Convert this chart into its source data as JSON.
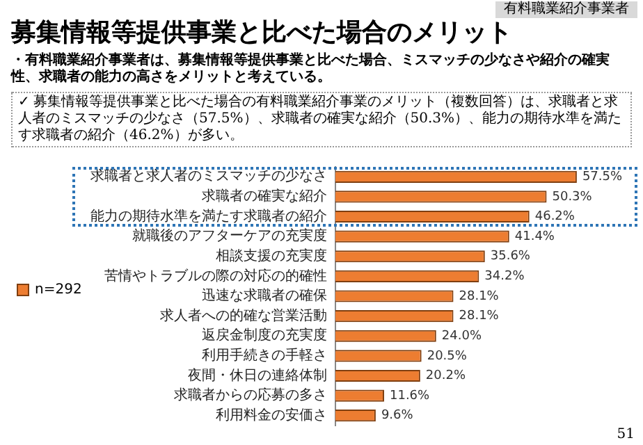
{
  "chart_data": {
    "type": "bar",
    "orientation": "horizontal",
    "title": "募集情報等提供事業と比べた場合のメリット",
    "subtitle": "・有料職業紹介事業者は、募集情報等提供事業と比べた場合、ミスマッチの少なさや紹介の確実性、求職者の能力の高さをメリットと考えている。",
    "annotations": [
      "有料職業紹介事業者",
      "✓ 募集情報等提供事業と比べた場合の有料職業紹介事業のメリット（複数回答）は、求職者と求人者のミスマッチの少なさ（57.5%）、求職者の確実な紹介（50.3%）、能力の期待水準を満たす求職者の紹介（46.2%）が多い。",
      "51"
    ],
    "categories": [
      "求職者と求人者のミスマッチの少なさ",
      "求職者の確実な紹介",
      "能力の期待水準を満たす求職者の紹介",
      "就職後のアフターケアの充実度",
      "相談支援の充実度",
      "苦情やトラブルの際の対応の的確性",
      "迅速な求職者の確保",
      "求人者への的確な営業活動",
      "返戻金制度の充実度",
      "利用手続きの手軽さ",
      "夜間・休日の連絡体制",
      "求職者からの応募の多さ",
      "利用料金の安価さ"
    ],
    "series": [
      {
        "name": "n=292",
        "color": "#ed7d31",
        "values": [
          57.5,
          50.3,
          46.2,
          41.4,
          35.6,
          34.2,
          28.1,
          28.1,
          24.0,
          20.5,
          20.2,
          11.6,
          9.6
        ],
        "value_labels": [
          "57.5%",
          "50.3%",
          "46.2%",
          "41.4%",
          "35.6%",
          "34.2%",
          "28.1%",
          "28.1%",
          "24.0%",
          "20.5%",
          "20.2%",
          "11.6%",
          "9.6%"
        ]
      }
    ],
    "legend": "left",
    "grid": false
  }
}
